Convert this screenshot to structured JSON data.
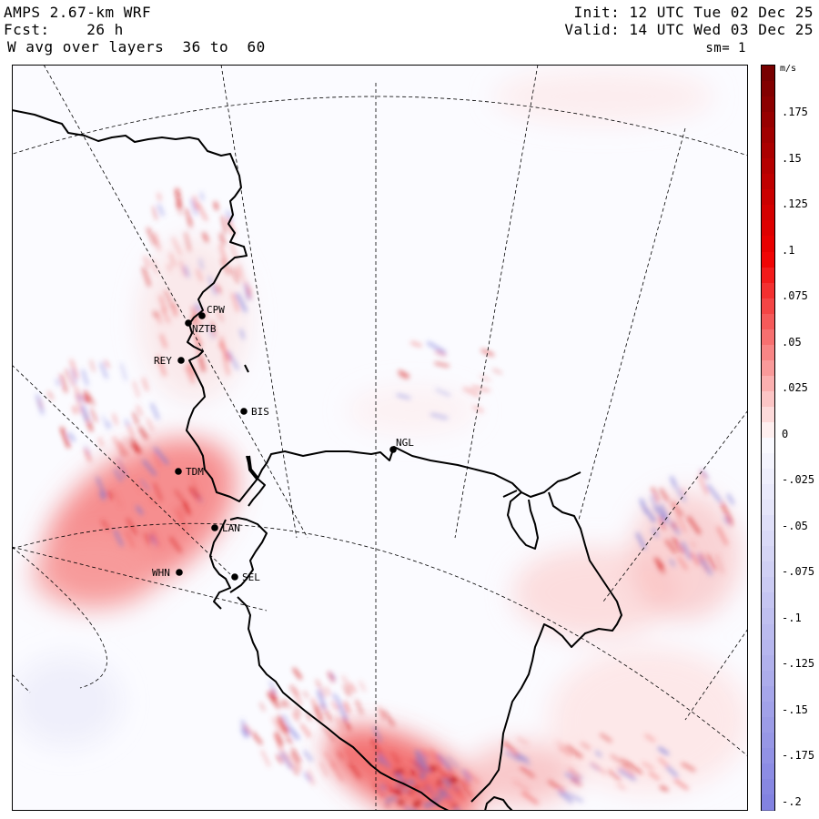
{
  "header": {
    "model": "AMPS 2.67-km WRF",
    "forecast": "Fcst:    26 h",
    "field": "W avg over layers  36 to  60",
    "init": "Init: 12 UTC Tue 02 Dec 25",
    "valid": "Valid: 14 UTC Wed 03 Dec 25",
    "smoothing": "sm= 1"
  },
  "colorbar": {
    "unit": "m/s",
    "labels": [
      ".175",
      ".15",
      ".125",
      ".1",
      ".075",
      ".05",
      ".025",
      "0",
      "-.025",
      "-.05",
      "-.075",
      "-.1",
      "-.125",
      "-.15",
      "-.175",
      "-.2"
    ],
    "range": [
      -0.2,
      0.2
    ],
    "positive_color": "#8b0000",
    "negative_color": "#8080e0"
  },
  "stations": [
    {
      "code": "CPW"
    },
    {
      "code": "NZTB"
    },
    {
      "code": "REY"
    },
    {
      "code": "BIS"
    },
    {
      "code": "NGL"
    },
    {
      "code": "TDM"
    },
    {
      "code": "LAN"
    },
    {
      "code": "WHN"
    },
    {
      "code": "SEL"
    }
  ]
}
